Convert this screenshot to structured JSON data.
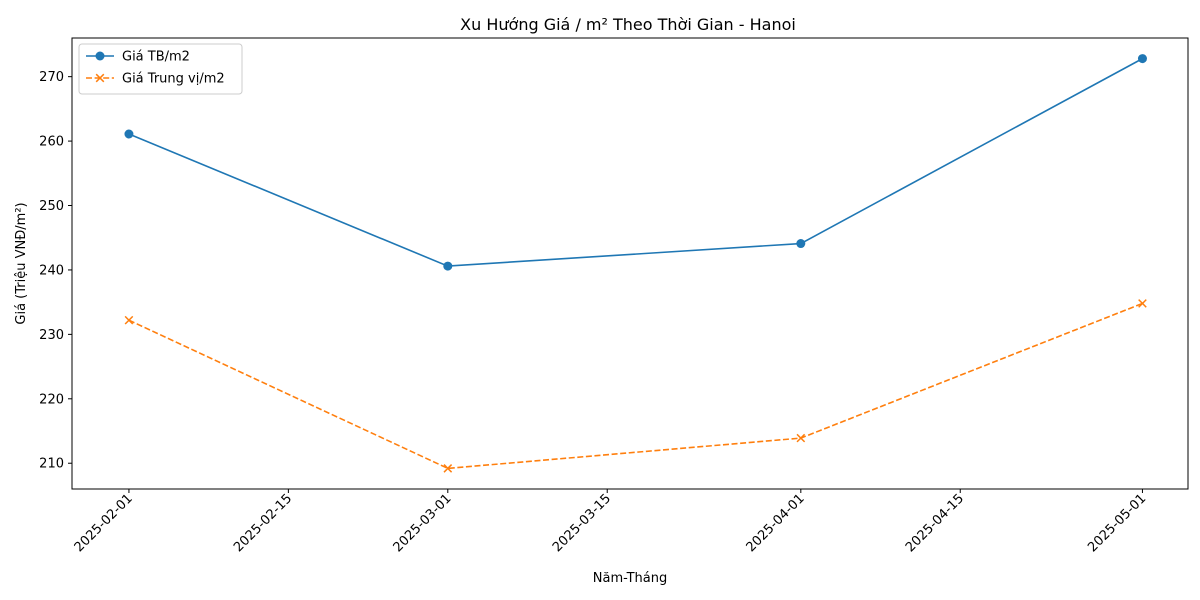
{
  "chart_data": {
    "type": "line",
    "title": "Xu Hướng Giá / m² Theo Thời Gian - Hanoi",
    "xlabel": "Năm-Tháng",
    "ylabel": "Giá (Triệu VNĐ/m²)",
    "x": [
      "2025-02-01",
      "2025-03-01",
      "2025-04-01",
      "2025-05-01"
    ],
    "x_ticks": [
      "2025-02-01",
      "2025-02-15",
      "2025-03-01",
      "2025-03-15",
      "2025-04-01",
      "2025-04-15",
      "2025-05-01"
    ],
    "y_ticks": [
      210,
      220,
      230,
      240,
      250,
      260,
      270
    ],
    "xlim": [
      "2025-01-27",
      "2025-05-05"
    ],
    "ylim": [
      206,
      276
    ],
    "grid": false,
    "legend_position": "top-left",
    "series": [
      {
        "name": "Giá TB/m2",
        "values": [
          261.1,
          240.6,
          244.1,
          272.8
        ],
        "color": "#1f77b4",
        "marker": "circle",
        "line_style": "solid"
      },
      {
        "name": "Giá Trung vị/m2",
        "values": [
          232.2,
          209.2,
          213.9,
          234.8
        ],
        "color": "#ff7f0e",
        "marker": "x",
        "line_style": "dashed"
      }
    ]
  }
}
